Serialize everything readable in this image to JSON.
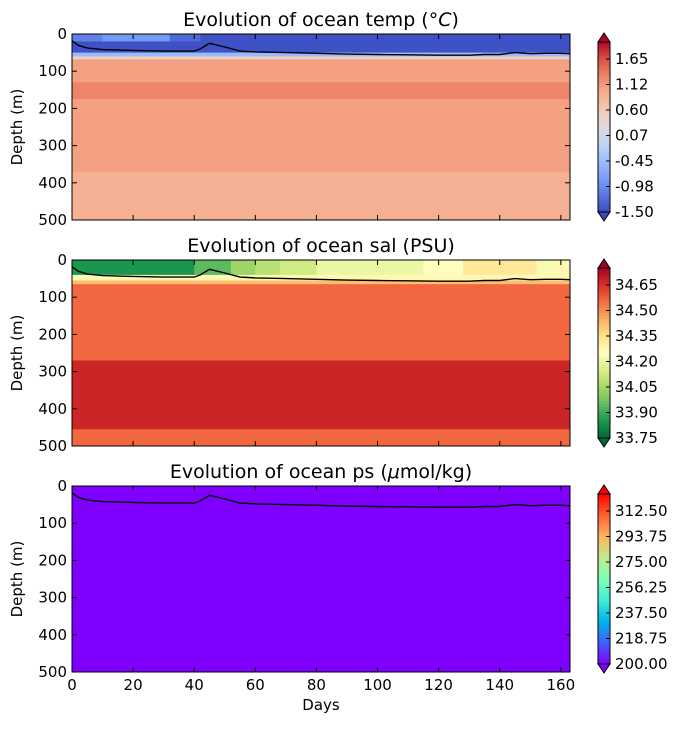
{
  "chart_data": [
    {
      "type": "heatmap",
      "title": "Evolution of ocean temp (°C)",
      "title_prefix": "Evolution of ocean temp (",
      "title_unit": "°C",
      "title_suffix": ")",
      "ylabel": "Depth (m)",
      "xlabel": "",
      "xlim": [
        0,
        163
      ],
      "ylim": [
        500,
        0
      ],
      "yticks": [
        0,
        100,
        200,
        300,
        400,
        500
      ],
      "xticks": [],
      "colormap": "coolwarm",
      "color_range": [
        -1.5,
        2.0
      ],
      "colorbar_ticks": [
        "1.65",
        "1.12",
        "0.60",
        "0.07",
        "-0.45",
        "-0.98",
        "-1.50"
      ],
      "colorbar_colors": [
        "#3b4cc0",
        "#5977e3",
        "#7b9ff9",
        "#9ebeff",
        "#c0d4f5",
        "#dddcdc",
        "#f2cbb7",
        "#f7ac8e",
        "#ee8468",
        "#d65244",
        "#b40426"
      ],
      "layers": [
        {
          "depth_from": 0,
          "depth_to": 20,
          "segments": [
            {
              "from": 0,
              "to": 10,
              "value": -1.05
            },
            {
              "from": 10,
              "to": 32,
              "value": -0.85
            },
            {
              "from": 32,
              "to": 42,
              "value": -1.25
            },
            {
              "from": 42,
              "to": 163,
              "value": -1.45
            }
          ]
        },
        {
          "depth_from": 20,
          "depth_to": 50,
          "segments": [
            {
              "from": 0,
              "to": 163,
              "value": -1.45
            }
          ]
        },
        {
          "depth_from": 50,
          "depth_to": 60,
          "segments": [
            {
              "from": 0,
              "to": 163,
              "value": -0.5
            }
          ]
        },
        {
          "depth_from": 60,
          "depth_to": 68,
          "segments": [
            {
              "from": 0,
              "to": 163,
              "value": 0.45
            }
          ]
        },
        {
          "depth_from": 68,
          "depth_to": 130,
          "segments": [
            {
              "from": 0,
              "to": 163,
              "value": 1.05
            }
          ]
        },
        {
          "depth_from": 130,
          "depth_to": 175,
          "segments": [
            {
              "from": 0,
              "to": 163,
              "value": 1.3
            }
          ]
        },
        {
          "depth_from": 175,
          "depth_to": 370,
          "segments": [
            {
              "from": 0,
              "to": 163,
              "value": 1.05
            }
          ]
        },
        {
          "depth_from": 370,
          "depth_to": 500,
          "segments": [
            {
              "from": 0,
              "to": 163,
              "value": 0.9
            }
          ]
        }
      ],
      "mld_contour": {
        "x": [
          0,
          2,
          5,
          10,
          20,
          30,
          40,
          42,
          45,
          50,
          55,
          60,
          70,
          80,
          90,
          100,
          110,
          120,
          130,
          135,
          140,
          145,
          150,
          155,
          160,
          163
        ],
        "y": [
          18,
          30,
          38,
          42,
          44,
          46,
          46,
          40,
          25,
          35,
          46,
          48,
          50,
          52,
          54,
          55,
          56,
          57,
          57,
          55,
          55,
          50,
          53,
          52,
          52,
          53
        ]
      }
    },
    {
      "type": "heatmap",
      "title": "Evolution of ocean sal (PSU)",
      "title_prefix": "Evolution of ocean sal (PSU)",
      "title_unit": "",
      "title_suffix": "",
      "ylabel": "Depth (m)",
      "xlabel": "",
      "xlim": [
        0,
        163
      ],
      "ylim": [
        500,
        0
      ],
      "yticks": [
        0,
        100,
        200,
        300,
        400,
        500
      ],
      "xticks": [],
      "colormap": "RdYlGn_r",
      "color_range": [
        33.75,
        34.8
      ],
      "colorbar_ticks": [
        "34.65",
        "34.50",
        "34.35",
        "34.20",
        "34.05",
        "33.90",
        "33.75"
      ],
      "colorbar_colors": [
        "#006837",
        "#1a9850",
        "#66bd63",
        "#a6d96a",
        "#d9ef8b",
        "#ffffbf",
        "#fee08b",
        "#fdae61",
        "#f46d43",
        "#d73027",
        "#a50026"
      ],
      "layers": [
        {
          "depth_from": 0,
          "depth_to": 40,
          "segments": [
            {
              "from": 0,
              "to": 40,
              "value": 33.85
            },
            {
              "from": 40,
              "to": 52,
              "value": 33.95
            },
            {
              "from": 52,
              "to": 60,
              "value": 34.05
            },
            {
              "from": 60,
              "to": 68,
              "value": 34.1
            },
            {
              "from": 68,
              "to": 80,
              "value": 34.15
            },
            {
              "from": 80,
              "to": 115,
              "value": 34.22
            },
            {
              "from": 115,
              "to": 128,
              "value": 34.28
            },
            {
              "from": 128,
              "to": 152,
              "value": 34.35
            },
            {
              "from": 152,
              "to": 158,
              "value": 34.25
            },
            {
              "from": 158,
              "to": 163,
              "value": 34.3
            }
          ]
        },
        {
          "depth_from": 40,
          "depth_to": 55,
          "segments": [
            {
              "from": 0,
              "to": 163,
              "value": 34.3
            }
          ]
        },
        {
          "depth_from": 55,
          "depth_to": 65,
          "segments": [
            {
              "from": 0,
              "to": 163,
              "value": 34.45
            }
          ]
        },
        {
          "depth_from": 65,
          "depth_to": 270,
          "segments": [
            {
              "from": 0,
              "to": 163,
              "value": 34.6
            }
          ]
        },
        {
          "depth_from": 270,
          "depth_to": 455,
          "segments": [
            {
              "from": 0,
              "to": 163,
              "value": 34.72
            }
          ]
        },
        {
          "depth_from": 455,
          "depth_to": 500,
          "segments": [
            {
              "from": 0,
              "to": 163,
              "value": 34.6
            }
          ]
        }
      ],
      "mld_contour": {
        "x": [
          0,
          2,
          5,
          10,
          20,
          30,
          40,
          42,
          45,
          50,
          55,
          60,
          70,
          80,
          90,
          100,
          110,
          120,
          130,
          135,
          140,
          145,
          150,
          155,
          160,
          163
        ],
        "y": [
          18,
          30,
          38,
          42,
          44,
          46,
          46,
          40,
          25,
          35,
          46,
          48,
          50,
          52,
          54,
          55,
          56,
          57,
          57,
          55,
          55,
          50,
          53,
          52,
          52,
          53
        ]
      }
    },
    {
      "type": "heatmap",
      "title": "Evolution of ocean ps (μmol/kg)",
      "title_prefix": "Evolution of ocean ps (",
      "title_unit": "μ",
      "title_suffix": "mol/kg)",
      "ylabel": "Depth (m)",
      "xlabel": "Days",
      "xlim": [
        0,
        163
      ],
      "ylim": [
        500,
        0
      ],
      "yticks": [
        0,
        100,
        200,
        300,
        400,
        500
      ],
      "xticks": [
        0,
        20,
        40,
        60,
        80,
        100,
        120,
        140,
        160
      ],
      "colormap": "rainbow",
      "color_range": [
        200,
        331.25
      ],
      "colorbar_ticks": [
        "312.50",
        "293.75",
        "275.00",
        "256.25",
        "237.50",
        "218.75",
        "200.00"
      ],
      "colorbar_colors": [
        "#8000ff",
        "#4062fa",
        "#00b5eb",
        "#40ecd4",
        "#80ffb4",
        "#c0eb8d",
        "#ffb360",
        "#ff6232",
        "#ff0000"
      ],
      "layers": [
        {
          "depth_from": 0,
          "depth_to": 500,
          "segments": [
            {
              "from": 0,
              "to": 163,
              "value": 200
            }
          ]
        }
      ],
      "mld_contour": {
        "x": [
          0,
          2,
          5,
          10,
          20,
          30,
          40,
          42,
          45,
          50,
          55,
          60,
          70,
          80,
          90,
          100,
          110,
          120,
          130,
          135,
          140,
          145,
          150,
          155,
          160,
          163
        ],
        "y": [
          18,
          30,
          38,
          42,
          44,
          46,
          46,
          40,
          25,
          35,
          46,
          48,
          50,
          52,
          54,
          55,
          56,
          57,
          57,
          55,
          55,
          50,
          53,
          52,
          52,
          53
        ]
      }
    }
  ]
}
